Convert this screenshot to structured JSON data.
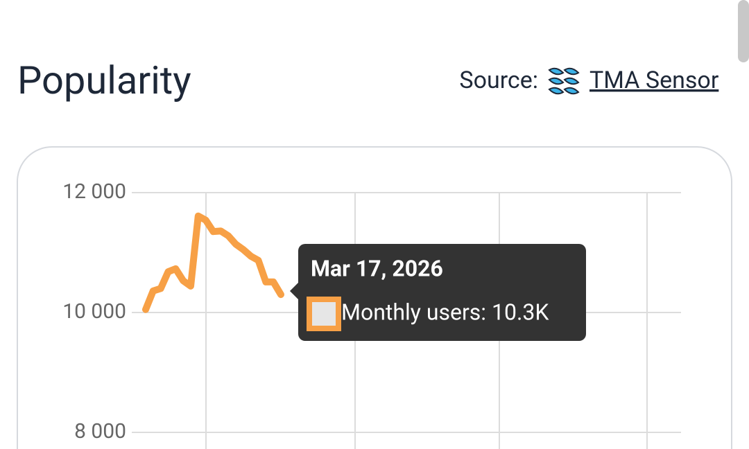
{
  "header": {
    "title": "Popularity",
    "source_label": "Source:",
    "source_link": "TMA Sensor"
  },
  "chart_data": {
    "type": "line",
    "series": [
      {
        "color": "#f7a046",
        "values": [
          10050,
          10360,
          10400,
          10680,
          10730,
          10530,
          10440,
          11610,
          11540,
          11350,
          11360,
          11280,
          11140,
          11050,
          10940,
          10870,
          10510,
          10510,
          10300
        ]
      }
    ],
    "ylim": [
      8000,
      12000
    ],
    "yticks": [
      {
        "value": 8000,
        "label": "8 000"
      },
      {
        "value": 10000,
        "label": "10 000"
      },
      {
        "value": 12000,
        "label": "12 000"
      }
    ],
    "grid": true,
    "tooltip": {
      "title": "Mar 17, 2026",
      "text": "Monthly users: 10.3K"
    }
  }
}
